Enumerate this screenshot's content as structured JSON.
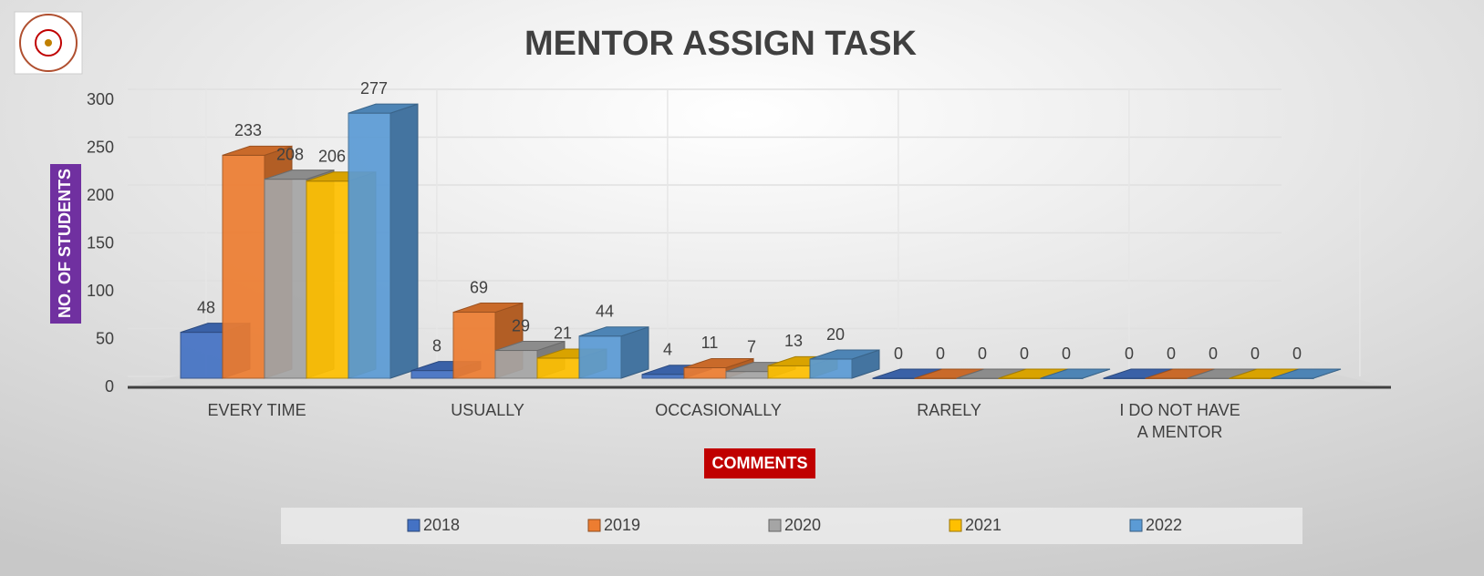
{
  "chart_data": {
    "type": "bar3d",
    "title": "MENTOR ASSIGN TASK",
    "y_label": "NO. OF STUDENTS",
    "x_label": "COMMENTS",
    "categories": [
      "EVERY TIME",
      "USUALLY",
      "OCCASIONALLY",
      "RARELY",
      "I DO NOT HAVE A MENTOR"
    ],
    "series": [
      {
        "name": "2018",
        "color": "#4472c4",
        "values": [
          48,
          8,
          4,
          0,
          0
        ]
      },
      {
        "name": "2019",
        "color": "#ed7d31",
        "values": [
          233,
          69,
          11,
          0,
          0
        ]
      },
      {
        "name": "2020",
        "color": "#a5a5a5",
        "values": [
          208,
          29,
          7,
          0,
          0
        ]
      },
      {
        "name": "2021",
        "color": "#ffc000",
        "values": [
          206,
          21,
          13,
          0,
          0
        ]
      },
      {
        "name": "2022",
        "color": "#5b9bd5",
        "values": [
          277,
          44,
          20,
          0,
          0
        ]
      }
    ],
    "ylim": [
      0,
      300
    ],
    "yticks": [
      0,
      50,
      100,
      150,
      200,
      250,
      300
    ],
    "grid": true,
    "legend": "bottom"
  }
}
